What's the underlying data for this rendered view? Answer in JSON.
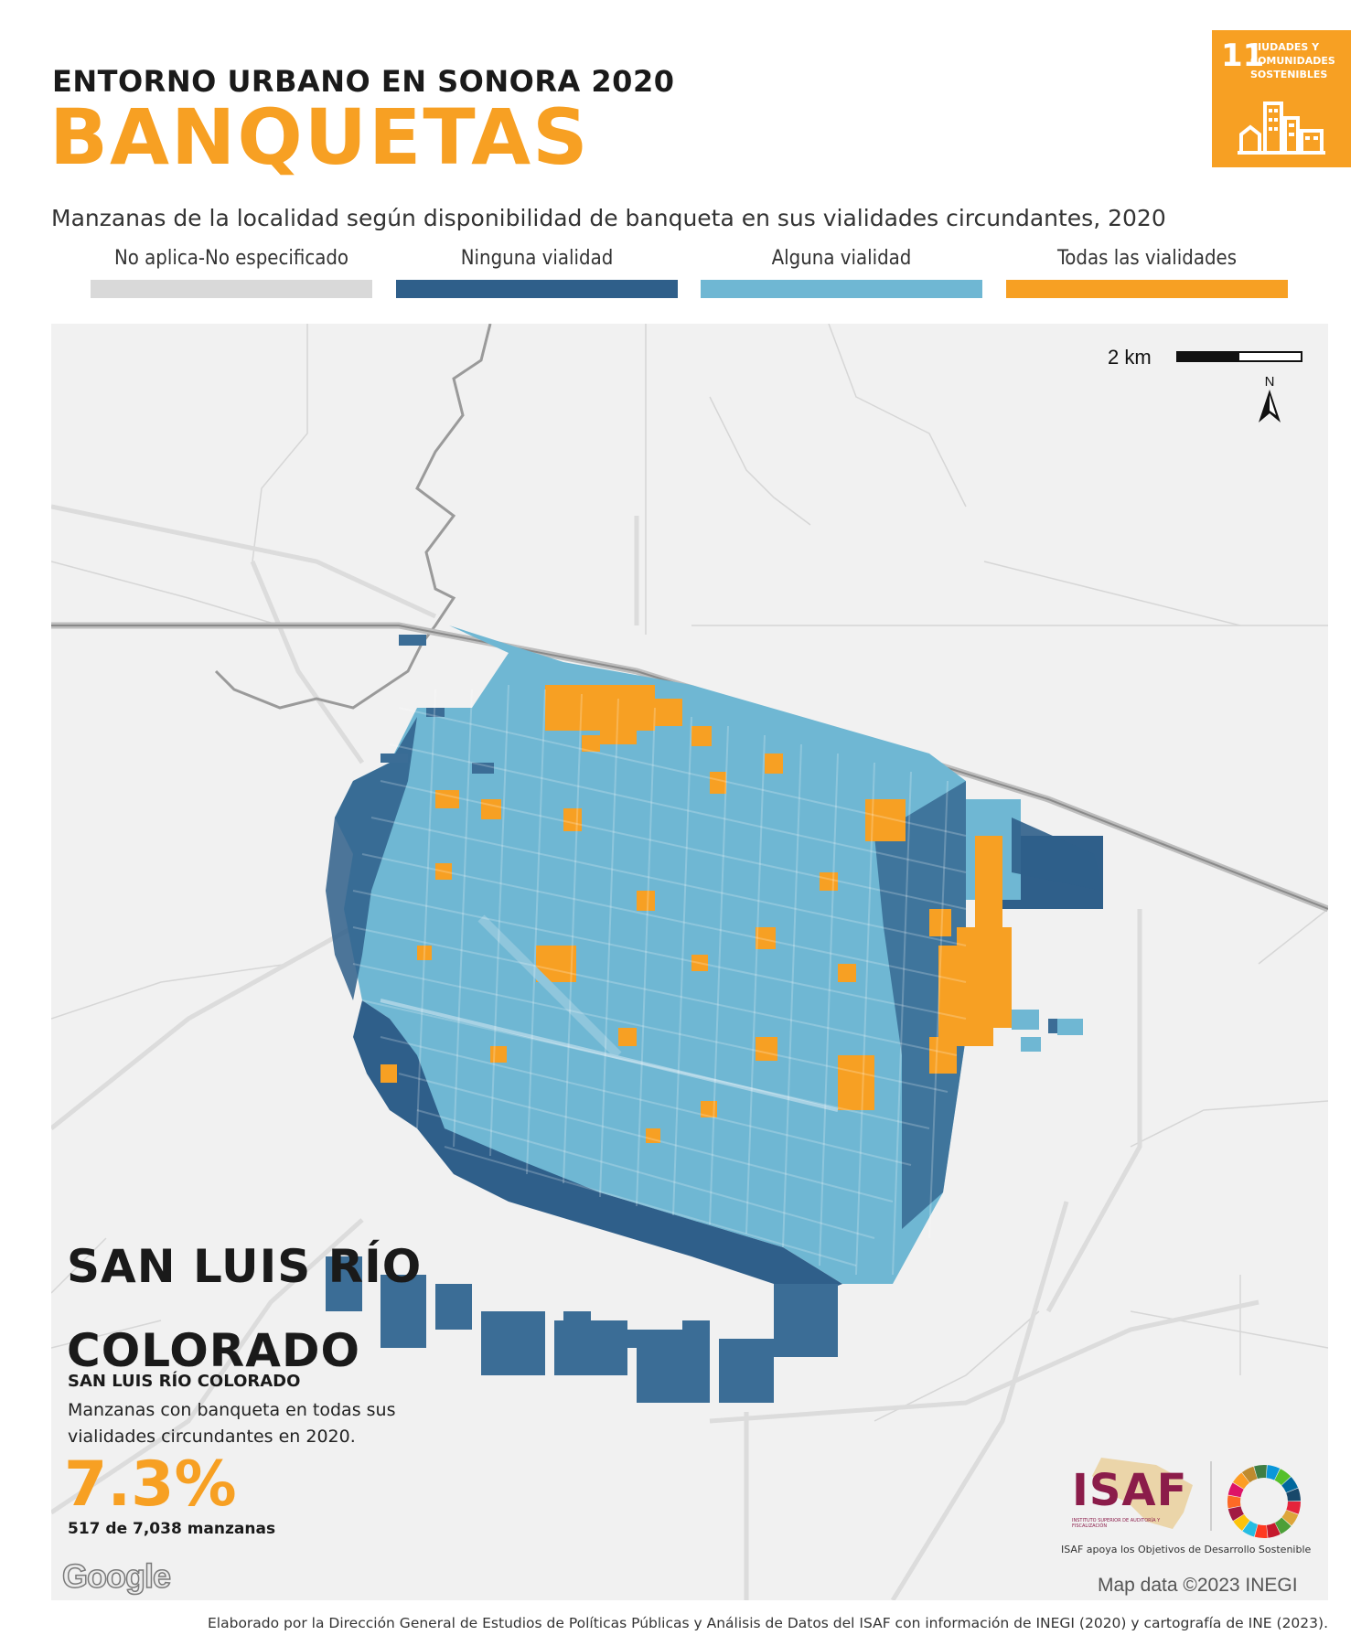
{
  "header": {
    "supertitle": "ENTORNO URBANO EN SONORA 2020",
    "title": "BANQUETAS",
    "subtitle": "Manzanas de la localidad según disponibilidad de banqueta en sus vialidades circundantes, 2020"
  },
  "sdg_badge": {
    "number": "11",
    "text": "CIUDADES Y COMUNIDADES SOSTENIBLES",
    "color": "#f7a023"
  },
  "legend": [
    {
      "label": "No aplica-No especificado",
      "color": "#d9d9d9"
    },
    {
      "label": "Ninguna vialidad",
      "color": "#2f5f8a"
    },
    {
      "label": "Alguna vialidad",
      "color": "#6fb7d3"
    },
    {
      "label": "Todas las vialidades",
      "color": "#f7a023"
    }
  ],
  "map": {
    "scale_label": "2 km",
    "north_label": "N",
    "attribution": "Map data ©2023 INEGI",
    "provider_logo": "Google"
  },
  "summary": {
    "city_line1": "SAN LUIS RÍO",
    "city_line2": "COLORADO",
    "city_small": "SAN LUIS RÍO COLORADO",
    "description": "Manzanas con banqueta en todas sus vialidades circundantes en 2020.",
    "percentage": "7.3%",
    "count_text": "517 de 7,038 manzanas"
  },
  "logos": {
    "isaf_text": "ISAF",
    "isaf_subtext": "INSTITUTO SUPERIOR DE AUDITORÍA Y FISCALIZACIÓN",
    "isaf_tagline": "ISAF apoya los Objetivos de Desarrollo Sostenible"
  },
  "footer": "Elaborado por la Dirección General de Estudios de Políticas Públicas y Análisis de Datos del ISAF con información de INEGI (2020) y cartografía de INE (2023)."
}
